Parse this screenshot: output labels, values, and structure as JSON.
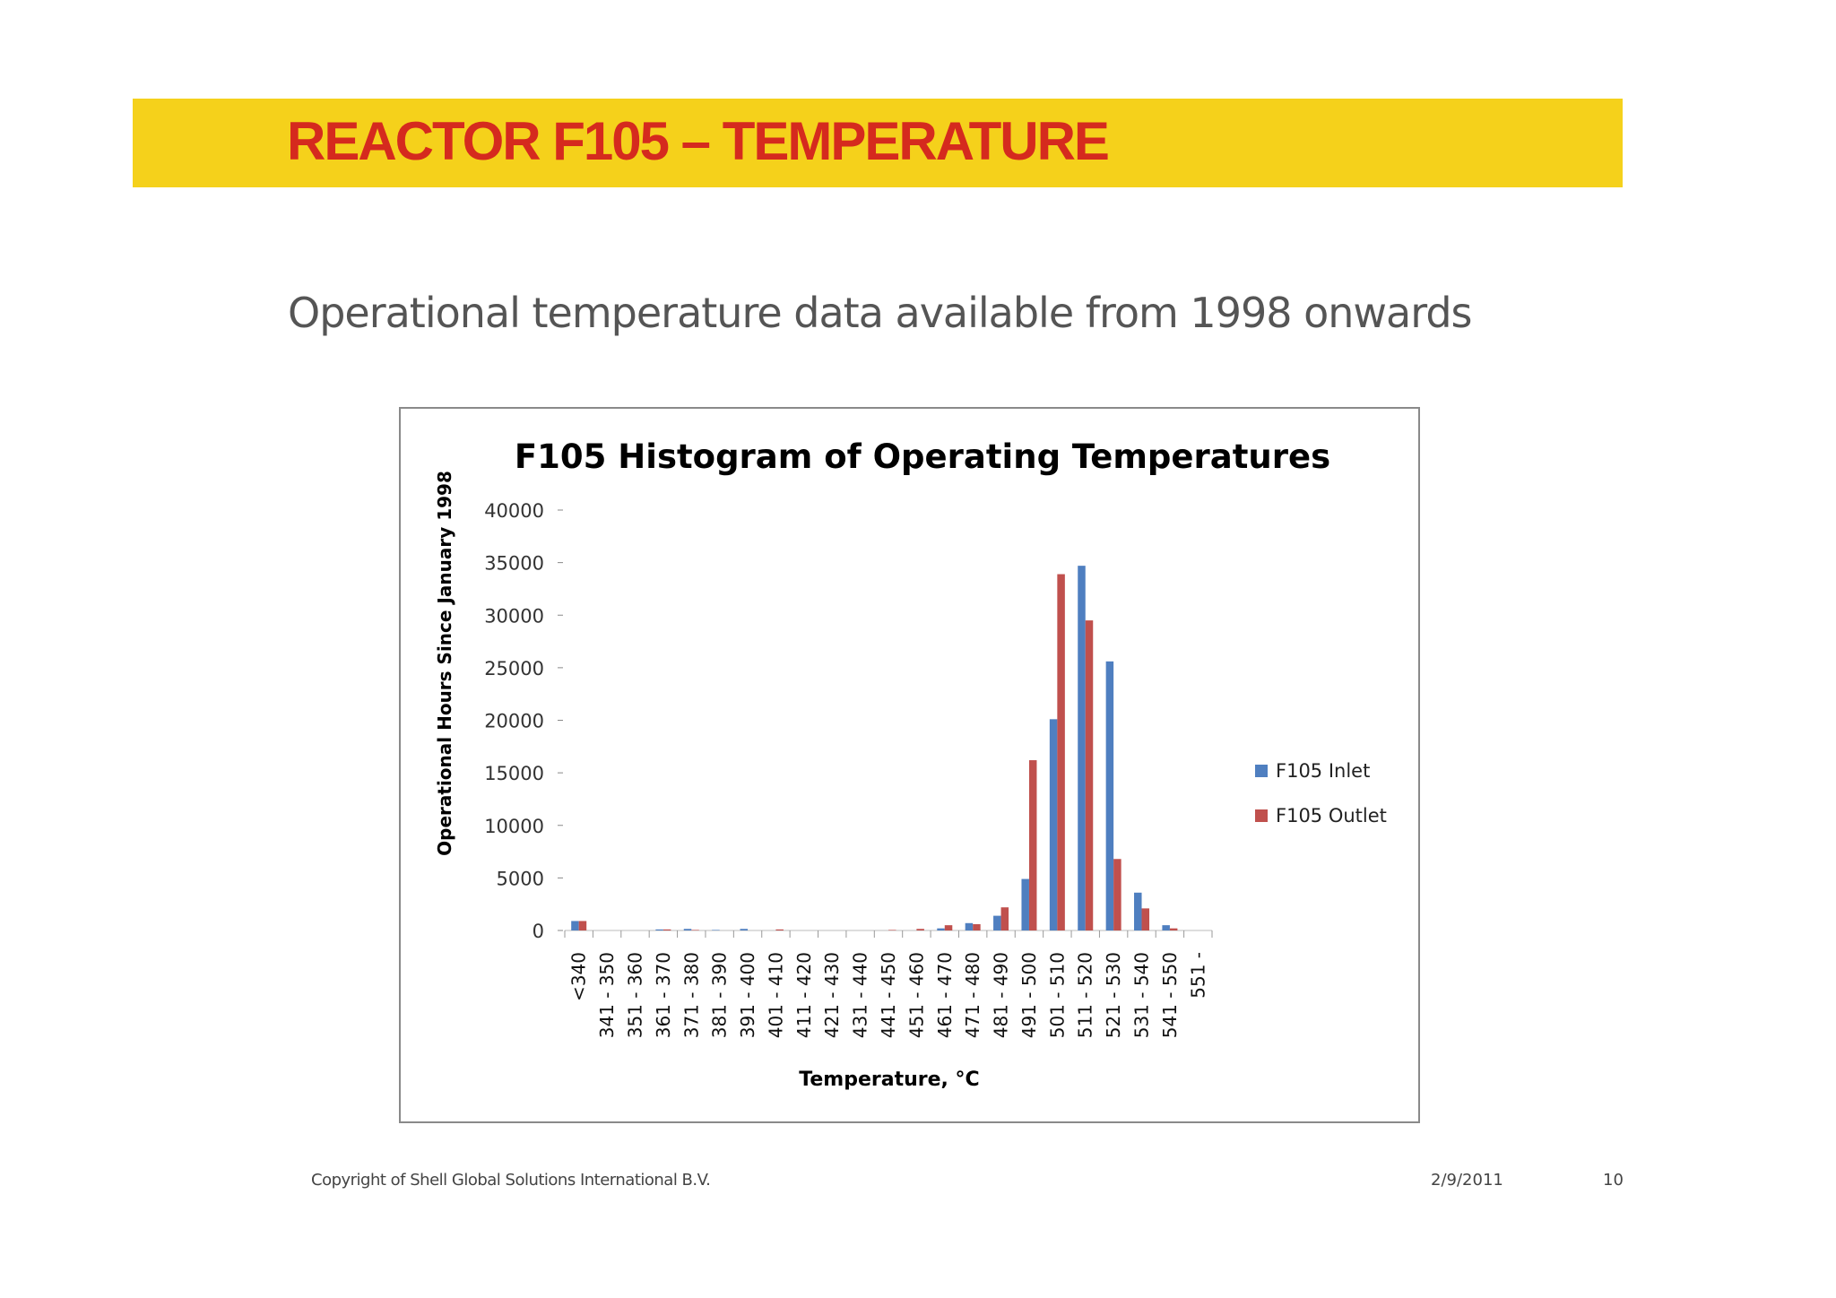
{
  "slide": {
    "title": "REACTOR F105 – TEMPERATURE",
    "subtitle": "Operational temperature data available from 1998 onwards",
    "copyright": "Copyright of Shell Global Solutions International B.V.",
    "date": "2/9/2011",
    "page_number": "10"
  },
  "colors": {
    "title_band": "#f5d11b",
    "title_text": "#d52a1e",
    "inlet": "#4f7fc0",
    "outlet": "#c0504d"
  },
  "chart_data": {
    "type": "bar",
    "title": "F105 Histogram of Operating Temperatures",
    "xlabel": "Temperature, °C",
    "ylabel": "Operational Hours Since January 1998",
    "ylim": [
      0,
      40000
    ],
    "yticks": [
      0,
      5000,
      10000,
      15000,
      20000,
      25000,
      30000,
      35000,
      40000
    ],
    "grid": false,
    "legend_position": "right",
    "categories": [
      "<340",
      "341 - 350",
      "351 - 360",
      "361 - 370",
      "371 - 380",
      "381 - 390",
      "391 - 400",
      "401 - 410",
      "411 - 420",
      "421 - 430",
      "431 - 440",
      "441 - 450",
      "451 - 460",
      "461 - 470",
      "471 - 480",
      "481 - 490",
      "491 - 500",
      "501 - 510",
      "511 - 520",
      "521 - 530",
      "531 - 540",
      "541 - 550",
      "551 -"
    ],
    "series": [
      {
        "name": "F105 Inlet",
        "values": [
          900,
          0,
          0,
          100,
          150,
          50,
          150,
          0,
          0,
          0,
          0,
          0,
          0,
          200,
          700,
          1400,
          4900,
          20100,
          34700,
          25600,
          3600,
          500,
          0
        ]
      },
      {
        "name": "F105 Outlet",
        "values": [
          900,
          0,
          0,
          100,
          50,
          0,
          0,
          100,
          0,
          0,
          0,
          50,
          150,
          500,
          600,
          2200,
          16200,
          33900,
          29500,
          6800,
          2100,
          200,
          0
        ]
      }
    ]
  }
}
